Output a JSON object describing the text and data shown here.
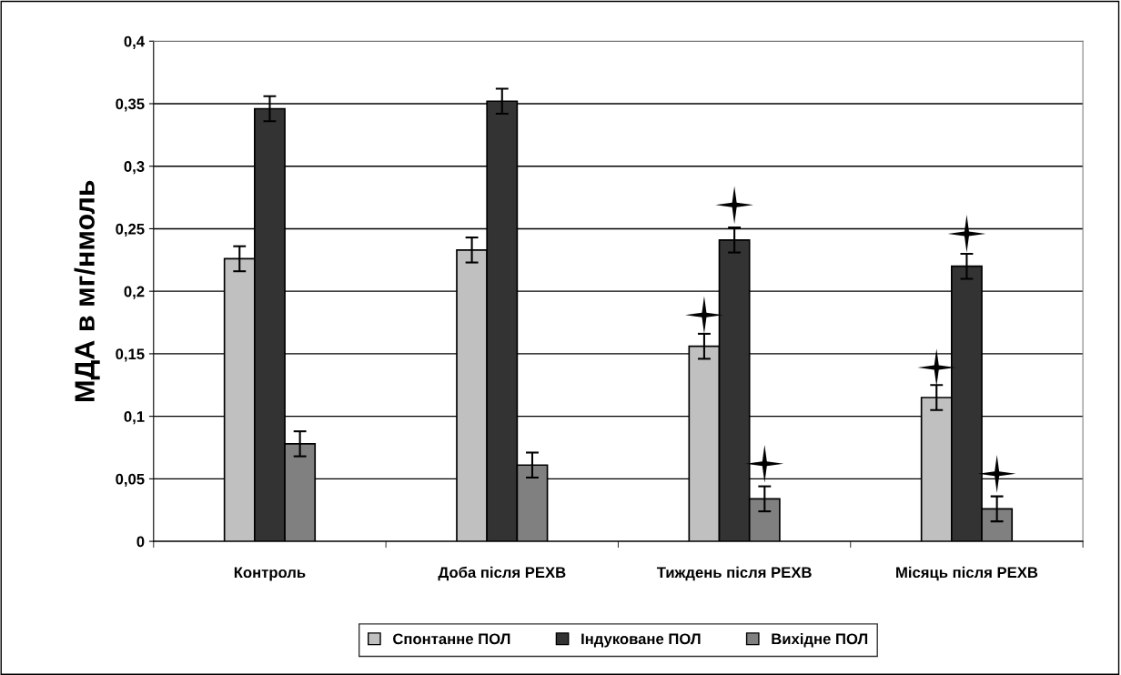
{
  "chart_data": {
    "type": "bar",
    "ylabel": "МДА в мг/нмоль",
    "categories": [
      "Контроль",
      "Доба після РЕХВ",
      "Тиждень після РЕХВ",
      "Місяць після РЕХВ"
    ],
    "series": [
      {
        "name": "Спонтанне ПОЛ",
        "color": "#c0c0c0",
        "values": [
          0.226,
          0.233,
          0.156,
          0.115
        ],
        "errors": [
          0.01,
          0.01,
          0.01,
          0.01
        ]
      },
      {
        "name": "Індуковане ПОЛ",
        "color": "#333333",
        "values": [
          0.346,
          0.352,
          0.241,
          0.22
        ],
        "errors": [
          0.01,
          0.01,
          0.01,
          0.01
        ]
      },
      {
        "name": "Вихідне ПОЛ",
        "color": "#808080",
        "values": [
          0.078,
          0.061,
          0.034,
          0.026
        ],
        "errors": [
          0.01,
          0.01,
          0.01,
          0.01
        ]
      },
      {
        "type": "scatter",
        "color": "#000000",
        "x": [
          "Контроль",
          "Доба після РЕХВ",
          "Тиждень після РЕХВ",
          "Місяць після РЕХВ"
        ],
        "values": [
          null,
          null,
          0.181,
          0.139
        ]
      },
      {
        "type": "scatter",
        "color": "#000000",
        "x": [
          "Контроль",
          "Доба після РЕХВ",
          "Тиждень після РЕХВ",
          "Місяць після РЕХВ"
        ],
        "values": [
          null,
          null,
          0.269,
          0.246
        ]
      },
      {
        "type": "scatter",
        "color": "#000000",
        "x": [
          "Контроль",
          "Доба після РЕХВ",
          "Тиждень після РЕХВ",
          "Місяць після РЕХВ"
        ],
        "values": [
          null,
          null,
          0.062,
          0.054
        ]
      }
    ],
    "ylim": [
      0,
      0.4
    ],
    "yticks": [
      {
        "value": 0,
        "label": "0"
      },
      {
        "value": 0.05,
        "label": "0,05"
      },
      {
        "value": 0.1,
        "label": "0,1"
      },
      {
        "value": 0.15,
        "label": "0,15"
      },
      {
        "value": 0.2,
        "label": "0,2"
      },
      {
        "value": 0.25,
        "label": "0,25"
      },
      {
        "value": 0.3,
        "label": "0,3"
      },
      {
        "value": 0.35,
        "label": "0,35"
      },
      {
        "value": 0.4,
        "label": "0,4"
      }
    ],
    "grid": "y",
    "legend": "bottom",
    "marker": "star"
  }
}
